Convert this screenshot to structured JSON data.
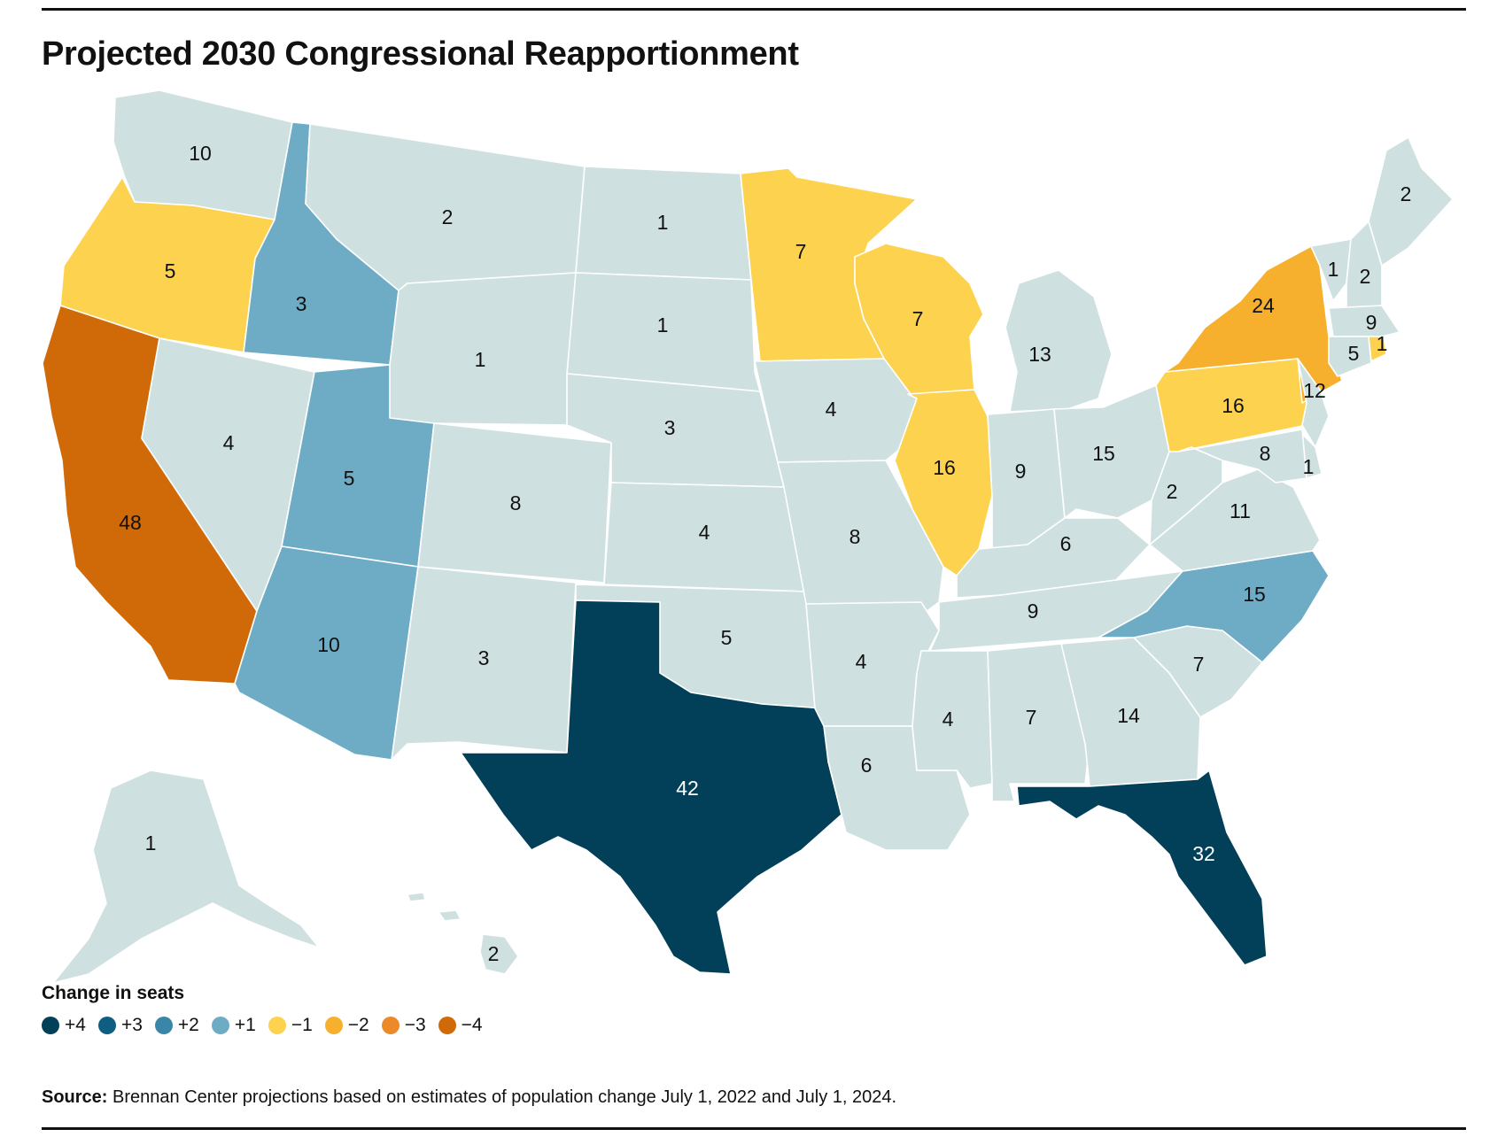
{
  "title": "Projected 2030 Congressional Reapportionment",
  "colors": {
    "no_change": "#cfe0e0",
    "plus4": "#02405a",
    "plus3": "#0e5e82",
    "plus2": "#3a86a8",
    "plus1": "#6eacc6",
    "minus1": "#fdd24f",
    "minus2": "#f7b02d",
    "minus3": "#ec8a29",
    "minus4": "#d06a08"
  },
  "legend": {
    "title": "Change in seats",
    "items": [
      {
        "label": "+4",
        "color": "#02405a"
      },
      {
        "label": "+3",
        "color": "#0e5e82"
      },
      {
        "label": "+2",
        "color": "#3a86a8"
      },
      {
        "label": "+1",
        "color": "#6eacc6"
      },
      {
        "label": "−1",
        "color": "#fdd24f"
      },
      {
        "label": "−2",
        "color": "#f7b02d"
      },
      {
        "label": "−3",
        "color": "#ec8a29"
      },
      {
        "label": "−4",
        "color": "#d06a08"
      }
    ]
  },
  "states": {
    "WA": {
      "seats": "10",
      "change": 0
    },
    "OR": {
      "seats": "5",
      "change": -1
    },
    "CA": {
      "seats": "48",
      "change": -4
    },
    "ID": {
      "seats": "3",
      "change": 1
    },
    "NV": {
      "seats": "4",
      "change": 0
    },
    "UT": {
      "seats": "5",
      "change": 1
    },
    "AZ": {
      "seats": "10",
      "change": 1
    },
    "MT": {
      "seats": "2",
      "change": 0
    },
    "WY": {
      "seats": "1",
      "change": 0
    },
    "CO": {
      "seats": "8",
      "change": 0
    },
    "NM": {
      "seats": "3",
      "change": 0
    },
    "ND": {
      "seats": "1",
      "change": 0
    },
    "SD": {
      "seats": "1",
      "change": 0
    },
    "NE": {
      "seats": "3",
      "change": 0
    },
    "KS": {
      "seats": "4",
      "change": 0
    },
    "OK": {
      "seats": "5",
      "change": 0
    },
    "TX": {
      "seats": "42",
      "change": 4
    },
    "MN": {
      "seats": "7",
      "change": -1
    },
    "IA": {
      "seats": "4",
      "change": 0
    },
    "MO": {
      "seats": "8",
      "change": 0
    },
    "AR": {
      "seats": "4",
      "change": 0
    },
    "LA": {
      "seats": "6",
      "change": 0
    },
    "WI": {
      "seats": "7",
      "change": -1
    },
    "IL": {
      "seats": "16",
      "change": -1
    },
    "MI": {
      "seats": "13",
      "change": 0
    },
    "IN": {
      "seats": "9",
      "change": 0
    },
    "OH": {
      "seats": "15",
      "change": 0
    },
    "KY": {
      "seats": "6",
      "change": 0
    },
    "TN": {
      "seats": "9",
      "change": 0
    },
    "MS": {
      "seats": "4",
      "change": 0
    },
    "AL": {
      "seats": "7",
      "change": 0
    },
    "GA": {
      "seats": "14",
      "change": 0
    },
    "FL": {
      "seats": "32",
      "change": 4
    },
    "SC": {
      "seats": "7",
      "change": 0
    },
    "NC": {
      "seats": "15",
      "change": 1
    },
    "VA": {
      "seats": "11",
      "change": 0
    },
    "WV": {
      "seats": "2",
      "change": 0
    },
    "PA": {
      "seats": "16",
      "change": -1
    },
    "NY": {
      "seats": "24",
      "change": -2
    },
    "NJ": {
      "seats": "12",
      "change": 0
    },
    "DE": {
      "seats": "1",
      "change": 0
    },
    "MD": {
      "seats": "8",
      "change": 0
    },
    "VT": {
      "seats": "1",
      "change": 0
    },
    "NH": {
      "seats": "2",
      "change": 0
    },
    "ME": {
      "seats": "2",
      "change": 0
    },
    "MA": {
      "seats": "9",
      "change": 0
    },
    "CT": {
      "seats": "5",
      "change": 0
    },
    "RI": {
      "seats": "1",
      "change": -1
    },
    "AK": {
      "seats": "1",
      "change": 0
    },
    "HI": {
      "seats": "2",
      "change": 0
    }
  },
  "source": {
    "label": "Source:",
    "text": "Brennan Center projections based on estimates of population change July 1, 2022 and July 1, 2024."
  }
}
